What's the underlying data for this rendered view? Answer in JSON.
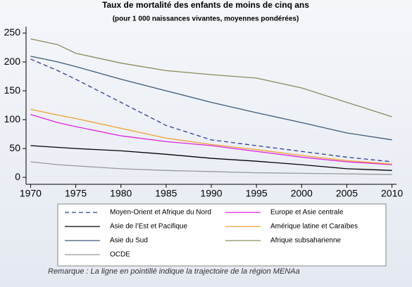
{
  "chart_data": {
    "type": "line",
    "title": "Taux de mortalité des enfants de moins de cinq ans",
    "subtitle": "(pour 1 000 naissances vivantes, moyennes pondérées)",
    "note": "Remarque : La ligne en pointillé indique la trajectoire de la région MENAa",
    "x": [
      1970,
      1973,
      1975,
      1980,
      1985,
      1990,
      1995,
      2000,
      2005,
      2010
    ],
    "xlim": [
      1969.5,
      2010.5
    ],
    "xticks": [
      1970,
      1975,
      1980,
      1985,
      1990,
      1995,
      2000,
      2005,
      2010
    ],
    "ylim": [
      -12,
      261
    ],
    "yticks": [
      0,
      50,
      100,
      150,
      200,
      250
    ],
    "series": [
      {
        "name": "Moyen-Orient et Afrique du Nord",
        "color": "#2e3d9e",
        "dashed": true,
        "values": [
          205,
          185,
          170,
          130,
          90,
          65,
          55,
          45,
          35,
          27
        ]
      },
      {
        "name": "Europe et Asie centrale",
        "color": "#e020e0",
        "values": [
          109,
          95,
          88,
          72,
          62,
          55,
          45,
          35,
          27,
          22
        ]
      },
      {
        "name": "Asie de l’Est et Pacifique",
        "color": "#000000",
        "values": [
          55,
          52,
          50,
          46,
          40,
          33,
          28,
          22,
          15,
          12
        ]
      },
      {
        "name": "Amérique latine et Caraïbes",
        "color": "#f0a030",
        "values": [
          118,
          108,
          102,
          85,
          68,
          57,
          48,
          38,
          29,
          23
        ]
      },
      {
        "name": "Asie du Sud",
        "color": "#3b5a7a",
        "values": [
          210,
          200,
          192,
          170,
          150,
          130,
          112,
          95,
          77,
          65
        ]
      },
      {
        "name": "Afrique subsaharienne",
        "color": "#8c8a5a",
        "values": [
          240,
          230,
          215,
          198,
          185,
          178,
          172,
          155,
          130,
          105
        ]
      },
      {
        "name": "OCDE",
        "color": "#999999",
        "values": [
          27,
          22,
          20,
          15,
          12,
          10,
          8,
          7,
          6,
          5
        ]
      }
    ]
  }
}
